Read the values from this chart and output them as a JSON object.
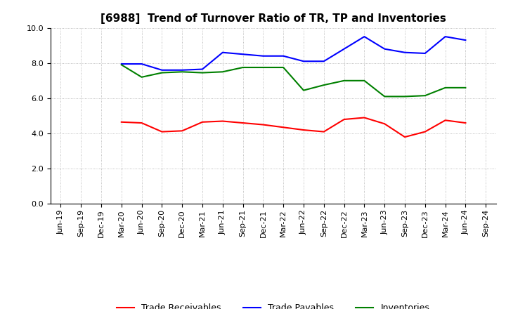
{
  "title": "[6988]  Trend of Turnover Ratio of TR, TP and Inventories",
  "x_labels": [
    "Jun-19",
    "Sep-19",
    "Dec-19",
    "Mar-20",
    "Jun-20",
    "Sep-20",
    "Dec-20",
    "Mar-21",
    "Jun-21",
    "Sep-21",
    "Dec-21",
    "Mar-22",
    "Jun-22",
    "Sep-22",
    "Dec-22",
    "Mar-23",
    "Jun-23",
    "Sep-23",
    "Dec-23",
    "Mar-24",
    "Jun-24",
    "Sep-24"
  ],
  "trade_receivables": [
    null,
    null,
    null,
    4.65,
    4.6,
    4.1,
    4.15,
    4.65,
    4.7,
    4.6,
    4.5,
    4.35,
    4.2,
    4.1,
    4.8,
    4.9,
    4.55,
    3.8,
    4.1,
    4.75,
    4.6,
    null
  ],
  "trade_payables": [
    null,
    null,
    null,
    7.95,
    7.95,
    7.6,
    7.6,
    7.65,
    8.6,
    8.5,
    8.4,
    8.4,
    8.1,
    8.1,
    8.8,
    9.5,
    8.8,
    8.6,
    8.55,
    9.5,
    9.3,
    null
  ],
  "inventories": [
    null,
    null,
    null,
    7.9,
    7.2,
    7.45,
    7.5,
    7.45,
    7.5,
    7.75,
    7.75,
    7.75,
    6.45,
    6.75,
    7.0,
    7.0,
    6.1,
    6.1,
    6.15,
    6.6,
    6.6,
    null
  ],
  "tr_color": "#FF0000",
  "tp_color": "#0000FF",
  "inv_color": "#008000",
  "ylim": [
    0.0,
    10.0
  ],
  "yticks": [
    0.0,
    2.0,
    4.0,
    6.0,
    8.0,
    10.0
  ],
  "background_color": "#FFFFFF",
  "grid_color": "#AAAAAA",
  "legend_labels": [
    "Trade Receivables",
    "Trade Payables",
    "Inventories"
  ],
  "title_fontsize": 11,
  "tick_fontsize": 8,
  "legend_fontsize": 9
}
